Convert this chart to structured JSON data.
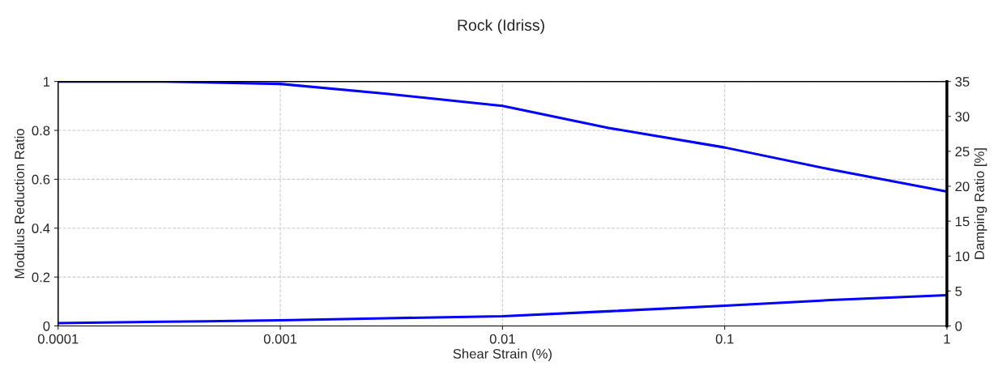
{
  "chart_data": {
    "type": "line",
    "title": "Rock (Idriss)",
    "xlabel": "Shear Strain (%)",
    "ylabel": "Modulus Reduction Ratio",
    "y2label": "Damping Ratio [%]",
    "x": [
      0.0001,
      0.0003,
      0.001,
      0.003,
      0.01,
      0.03,
      0.1,
      0.3,
      1
    ],
    "series": [
      {
        "color": "#0000ff",
        "values": [
          1.0,
          1.0,
          0.99,
          0.95,
          0.9,
          0.81,
          0.73,
          0.64,
          0.55
        ]
      },
      {
        "color": "#0000ff",
        "axis": "y2",
        "values": [
          0.4,
          0.6,
          0.8,
          1.1,
          1.4,
          2.1,
          2.9,
          3.7,
          4.4
        ]
      }
    ],
    "log": "x",
    "xlim": [
      0.0001,
      1
    ],
    "xticks": [
      0.0001,
      0.001,
      0.01,
      0.1,
      1
    ],
    "ylim": [
      0,
      1
    ],
    "yticks": [
      0,
      0.2,
      0.4,
      0.6,
      0.8,
      1
    ],
    "y2lim": [
      0,
      35
    ],
    "y2ticks": [
      0,
      5,
      10,
      15,
      20,
      25,
      30,
      35
    ],
    "grid": true,
    "marker": "none",
    "line_style": "solid"
  }
}
